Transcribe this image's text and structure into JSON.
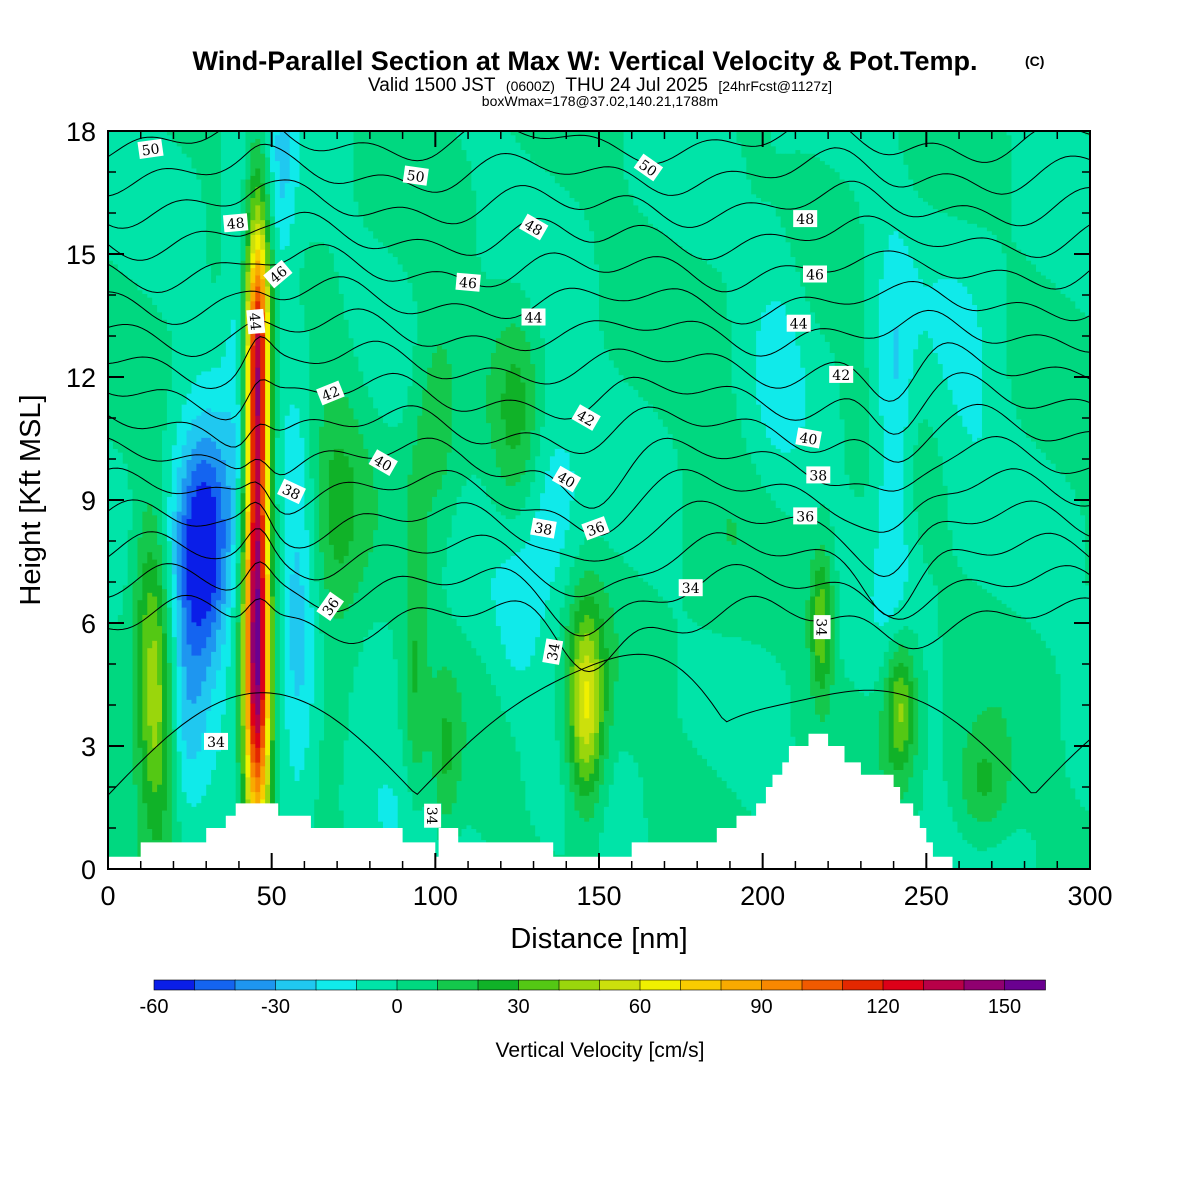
{
  "title": {
    "main": "Wind-Parallel Section at Max W: Vertical Velocity & Pot.Temp.",
    "copyright": "(C)",
    "valid_prefix": "Valid 1500 JST",
    "valid_utc": "(0600Z)",
    "valid_date": "THU 24 Jul 2025",
    "forecast": "[24hrFcst@1127z]",
    "box_info": "boxWmax=178@37.02,140.21,1788m"
  },
  "chart_data": {
    "type": "heatmap",
    "xlabel": "Distance [nm]",
    "ylabel": "Height [Kft MSL]",
    "xlim": [
      0,
      300
    ],
    "ylim": [
      0,
      18
    ],
    "x_ticks": [
      "0",
      "50",
      "100",
      "150",
      "200",
      "250",
      "300"
    ],
    "y_ticks": [
      "0",
      "3",
      "6",
      "9",
      "12",
      "15",
      "18"
    ],
    "colorbar": {
      "label": "Vertical Velocity [cm/s]",
      "tick_labels": [
        "-60",
        "-30",
        "0",
        "30",
        "60",
        "90",
        "120",
        "150"
      ],
      "tick_values": [
        -60,
        -30,
        0,
        30,
        60,
        90,
        120,
        150
      ],
      "levels": [
        -60,
        -50,
        -40,
        -30,
        -20,
        -10,
        0,
        10,
        20,
        30,
        40,
        50,
        60,
        70,
        80,
        90,
        100,
        110,
        120,
        130,
        140,
        150,
        160
      ],
      "colors": [
        "#0a1ee8",
        "#1464f0",
        "#1e96f0",
        "#20c8f0",
        "#10eaea",
        "#00e4a8",
        "#00d880",
        "#14c84c",
        "#10b228",
        "#54c814",
        "#9ad60c",
        "#cce00c",
        "#f0f000",
        "#f8cc00",
        "#f8aa00",
        "#f88800",
        "#f05a00",
        "#e42800",
        "#dc0018",
        "#b80048",
        "#900070",
        "#6a0090"
      ]
    },
    "w_features": [
      {
        "x": 45.5,
        "z": 8.5,
        "wx": 2.6,
        "wz": 4.5,
        "w": 120
      },
      {
        "x": 45.5,
        "z": 4.0,
        "wx": 3.0,
        "wz": 2.5,
        "w": 70
      },
      {
        "x": 46,
        "z": 12.5,
        "wx": 2.5,
        "wz": 2.0,
        "w": 60
      },
      {
        "x": 29,
        "z": 7.7,
        "wx": 6.5,
        "wz": 2.0,
        "w": -72
      },
      {
        "x": 24,
        "z": 4.0,
        "wx": 4.0,
        "wz": 2.0,
        "w": -15
      },
      {
        "x": 58,
        "z": 6.0,
        "wx": 4.0,
        "wz": 4.5,
        "w": -22
      },
      {
        "x": 70,
        "z": 8.0,
        "wx": 6.0,
        "wz": 3.0,
        "w": 20
      },
      {
        "x": 15,
        "z": 3.5,
        "wx": 4.0,
        "wz": 2.0,
        "w": 42
      },
      {
        "x": 13,
        "z": 6.5,
        "wx": 4.0,
        "wz": 2.0,
        "w": 25
      },
      {
        "x": 146,
        "z": 3.9,
        "wx": 4.0,
        "wz": 1.7,
        "w": 62
      },
      {
        "x": 135,
        "z": 9.0,
        "wx": 7.0,
        "wz": 2.0,
        "w": -18
      },
      {
        "x": 125,
        "z": 6.0,
        "wx": 5.0,
        "wz": 1.5,
        "w": -10
      },
      {
        "x": 218,
        "z": 6.0,
        "wx": 2.5,
        "wz": 1.2,
        "w": 40
      },
      {
        "x": 242,
        "z": 4.0,
        "wx": 3.5,
        "wz": 1.2,
        "w": 45
      },
      {
        "x": 240,
        "z": 10.5,
        "wx": 4.0,
        "wz": 3.0,
        "w": -25
      },
      {
        "x": 205,
        "z": 13.0,
        "wx": 6.0,
        "wz": 3.0,
        "w": -10
      },
      {
        "x": 40,
        "z": 14.0,
        "wx": 3.0,
        "wz": 3.0,
        "w": -15
      },
      {
        "x": 53,
        "z": 16.5,
        "wx": 3.0,
        "wz": 2.0,
        "w": -20
      },
      {
        "x": 100,
        "z": 11.0,
        "wx": 5.0,
        "wz": 2.0,
        "w": 18
      },
      {
        "x": 125,
        "z": 11.0,
        "wx": 5.0,
        "wz": 2.0,
        "w": 20
      },
      {
        "x": 267,
        "z": 2.0,
        "wx": 6.0,
        "wz": 1.0,
        "w": 25
      },
      {
        "x": 94,
        "z": 5.0,
        "wx": 2.5,
        "wz": 3.0,
        "w": 18
      },
      {
        "x": 103,
        "z": 2.5,
        "wx": 3.0,
        "wz": 1.5,
        "w": 18
      },
      {
        "x": 263,
        "z": 12.0,
        "wx": 8.0,
        "wz": 2.5,
        "w": -10
      },
      {
        "x": 80,
        "z": 1.5,
        "wx": 12.0,
        "wz": 1.2,
        "w": -10
      },
      {
        "x": 185,
        "z": 9.0,
        "wx": 8.0,
        "wz": 4.0,
        "w": 5
      }
    ],
    "terrain": [
      [
        0,
        0.3
      ],
      [
        10,
        0.3
      ],
      [
        10,
        0.65
      ],
      [
        30,
        0.65
      ],
      [
        30,
        1.0
      ],
      [
        36,
        1.0
      ],
      [
        36,
        1.3
      ],
      [
        39,
        1.3
      ],
      [
        39,
        1.6
      ],
      [
        52,
        1.6
      ],
      [
        52,
        1.3
      ],
      [
        62,
        1.3
      ],
      [
        62,
        1.0
      ],
      [
        90,
        1.0
      ],
      [
        90,
        0.65
      ],
      [
        100,
        0.65
      ],
      [
        100,
        0.3
      ],
      [
        101,
        0.3
      ],
      [
        101,
        1.0
      ],
      [
        107,
        1.0
      ],
      [
        107,
        0.65
      ],
      [
        136,
        0.65
      ],
      [
        136,
        0.3
      ],
      [
        160,
        0.3
      ],
      [
        160,
        0.65
      ],
      [
        186,
        0.65
      ],
      [
        186,
        1.0
      ],
      [
        192,
        1.0
      ],
      [
        192,
        1.3
      ],
      [
        198,
        1.3
      ],
      [
        198,
        1.6
      ],
      [
        201,
        1.6
      ],
      [
        201,
        2.0
      ],
      [
        203,
        2.0
      ],
      [
        203,
        2.3
      ],
      [
        206,
        2.3
      ],
      [
        206,
        2.6
      ],
      [
        208,
        2.6
      ],
      [
        208,
        3.0
      ],
      [
        214,
        3.0
      ],
      [
        214,
        3.3
      ],
      [
        220,
        3.3
      ],
      [
        220,
        3.0
      ],
      [
        225,
        3.0
      ],
      [
        225,
        2.6
      ],
      [
        230,
        2.6
      ],
      [
        230,
        2.3
      ],
      [
        240,
        2.3
      ],
      [
        240,
        2.0
      ],
      [
        242,
        2.0
      ],
      [
        242,
        1.6
      ],
      [
        246,
        1.6
      ],
      [
        246,
        1.3
      ],
      [
        248,
        1.3
      ],
      [
        248,
        1.0
      ],
      [
        250,
        1.0
      ],
      [
        250,
        0.65
      ],
      [
        252,
        0.65
      ],
      [
        252,
        0.3
      ],
      [
        258,
        0.3
      ],
      [
        258,
        0.0
      ],
      [
        300,
        0.0
      ]
    ],
    "theta_levels": [
      34,
      35,
      36,
      37,
      38,
      39,
      40,
      41,
      42,
      43,
      44,
      45,
      46,
      47,
      48,
      49,
      50
    ],
    "theta_labels": [
      {
        "text": "50",
        "x": 13,
        "z": 17.55,
        "angle": 8
      },
      {
        "text": "50",
        "x": 94,
        "z": 16.9,
        "angle": -8
      },
      {
        "text": "50",
        "x": 165,
        "z": 17.1,
        "angle": -35
      },
      {
        "text": "48",
        "x": 39,
        "z": 15.75,
        "angle": 5
      },
      {
        "text": "48",
        "x": 130,
        "z": 15.65,
        "angle": -30
      },
      {
        "text": "48",
        "x": 213,
        "z": 15.85,
        "angle": 0
      },
      {
        "text": "46",
        "x": 52,
        "z": 14.5,
        "angle": 40
      },
      {
        "text": "46",
        "x": 110,
        "z": 14.3,
        "angle": -5
      },
      {
        "text": "46",
        "x": 216,
        "z": 14.5,
        "angle": 0
      },
      {
        "text": "44",
        "x": 45,
        "z": 13.35,
        "angle": -85
      },
      {
        "text": "44",
        "x": 130,
        "z": 13.45,
        "angle": 0
      },
      {
        "text": "44",
        "x": 211,
        "z": 13.3,
        "angle": 0
      },
      {
        "text": "42",
        "x": 68,
        "z": 11.6,
        "angle": 22
      },
      {
        "text": "42",
        "x": 146,
        "z": 11.0,
        "angle": -30
      },
      {
        "text": "42",
        "x": 224,
        "z": 12.05,
        "angle": 0
      },
      {
        "text": "40",
        "x": 84,
        "z": 9.9,
        "angle": -30
      },
      {
        "text": "40",
        "x": 140,
        "z": 9.5,
        "angle": -30
      },
      {
        "text": "40",
        "x": 214,
        "z": 10.5,
        "angle": -10
      },
      {
        "text": "38",
        "x": 56,
        "z": 9.2,
        "angle": -25
      },
      {
        "text": "38",
        "x": 133,
        "z": 8.3,
        "angle": -10
      },
      {
        "text": "38",
        "x": 217,
        "z": 9.6,
        "angle": 0
      },
      {
        "text": "36",
        "x": 149,
        "z": 8.3,
        "angle": 20
      },
      {
        "text": "36",
        "x": 213,
        "z": 8.6,
        "angle": 0
      },
      {
        "text": "36",
        "x": 68,
        "z": 6.4,
        "angle": 55
      },
      {
        "text": "34",
        "x": 33,
        "z": 3.1,
        "angle": 0
      },
      {
        "text": "34",
        "x": 178,
        "z": 6.85,
        "angle": 0
      },
      {
        "text": "34",
        "x": 136,
        "z": 5.3,
        "angle": 80
      },
      {
        "text": "34",
        "x": 218,
        "z": 5.9,
        "angle": -90
      },
      {
        "text": "34",
        "x": 99,
        "z": 1.3,
        "angle": -90
      }
    ]
  }
}
